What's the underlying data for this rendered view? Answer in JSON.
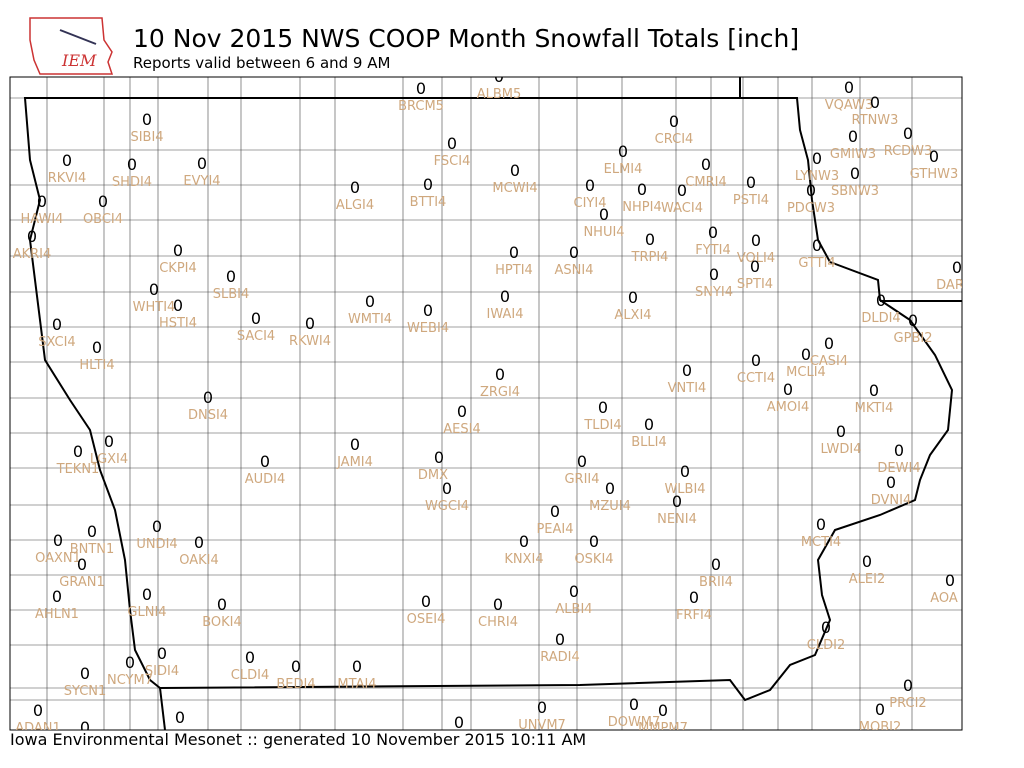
{
  "logo": "IEM",
  "header": {
    "title": "10 Nov 2015 NWS COOP Month Snowfall Totals [inch]",
    "subtitle": "Reports valid between 6 and 9 AM"
  },
  "footer": "Iowa Environmental Mesonet :: generated 10 November 2015 10:11 AM",
  "stations": [
    {
      "id": "BRCM5",
      "value": 0
    },
    {
      "id": "ALBM5",
      "value": 0
    },
    {
      "id": "SIBI4",
      "value": 0
    },
    {
      "id": "VQAW3",
      "value": 0
    },
    {
      "id": "RTNW3",
      "value": 0
    },
    {
      "id": "CRCI4",
      "value": 0
    },
    {
      "id": "GMIW3",
      "value": 0
    },
    {
      "id": "RCDW3",
      "value": 0
    },
    {
      "id": "FSCI4",
      "value": 0
    },
    {
      "id": "RKVI4",
      "value": 0
    },
    {
      "id": "SHDI4",
      "value": 0
    },
    {
      "id": "EVYI4",
      "value": 0
    },
    {
      "id": "MCWI4",
      "value": 0
    },
    {
      "id": "ELMI4",
      "value": 0
    },
    {
      "id": "CMRI4",
      "value": 0
    },
    {
      "id": "LYNW3",
      "value": 0
    },
    {
      "id": "SBNW3",
      "value": 0
    },
    {
      "id": "GTHW3",
      "value": 0
    },
    {
      "id": "ALGI4",
      "value": 0
    },
    {
      "id": "BTTI4",
      "value": 0
    },
    {
      "id": "CIYI4",
      "value": 0
    },
    {
      "id": "NHPI4",
      "value": 0
    },
    {
      "id": "WACI4",
      "value": 0
    },
    {
      "id": "PSTI4",
      "value": 0
    },
    {
      "id": "PDCW3",
      "value": 0
    },
    {
      "id": "HAWI4",
      "value": 0
    },
    {
      "id": "OBCI4",
      "value": 0
    },
    {
      "id": "NHUI4",
      "value": 0
    },
    {
      "id": "AKRI4",
      "value": 0
    },
    {
      "id": "CKPI4",
      "value": 0
    },
    {
      "id": "HPTI4",
      "value": 0
    },
    {
      "id": "ASNI4",
      "value": 0
    },
    {
      "id": "TRPI4",
      "value": 0
    },
    {
      "id": "FYTI4",
      "value": 0
    },
    {
      "id": "VOLI4",
      "value": 0
    },
    {
      "id": "GTTI4",
      "value": 0
    },
    {
      "id": "DAR",
      "value": 0
    },
    {
      "id": "SLBI4",
      "value": 0
    },
    {
      "id": "SNYI4",
      "value": 0
    },
    {
      "id": "SPTI4",
      "value": 0
    },
    {
      "id": "WHTI4",
      "value": 0
    },
    {
      "id": "HSTI4",
      "value": 0
    },
    {
      "id": "WMTI4",
      "value": 0
    },
    {
      "id": "IWAI4",
      "value": 0
    },
    {
      "id": "ALXI4",
      "value": 0
    },
    {
      "id": "DLDI4",
      "value": 0
    },
    {
      "id": "SACI4",
      "value": 0
    },
    {
      "id": "RKWI4",
      "value": 0
    },
    {
      "id": "WEBI4",
      "value": 0
    },
    {
      "id": "SXCI4",
      "value": 0
    },
    {
      "id": "GPBI2",
      "value": 0
    },
    {
      "id": "HLTI4",
      "value": 0
    },
    {
      "id": "CASI4",
      "value": 0
    },
    {
      "id": "MCLI4",
      "value": 0
    },
    {
      "id": "VNTI4",
      "value": 0
    },
    {
      "id": "CCTI4",
      "value": 0
    },
    {
      "id": "ZRGI4",
      "value": 0
    },
    {
      "id": "AMOI4",
      "value": 0
    },
    {
      "id": "MKTI4",
      "value": 0
    },
    {
      "id": "DNSI4",
      "value": 0
    },
    {
      "id": "AESI4",
      "value": 0
    },
    {
      "id": "TLDI4",
      "value": 0
    },
    {
      "id": "BLLI4",
      "value": 0
    },
    {
      "id": "LWDI4",
      "value": 0
    },
    {
      "id": "TEKN1",
      "value": 0
    },
    {
      "id": "LGXI4",
      "value": 0
    },
    {
      "id": "JAMI4",
      "value": 0
    },
    {
      "id": "DEWI4",
      "value": 0
    },
    {
      "id": "AUDI4",
      "value": 0
    },
    {
      "id": "DMX",
      "value": 0
    },
    {
      "id": "GRII4",
      "value": 0
    },
    {
      "id": "WLBI4",
      "value": 0
    },
    {
      "id": "DVNI4",
      "value": 0
    },
    {
      "id": "WGCI4",
      "value": 0
    },
    {
      "id": "MZUI4",
      "value": 0
    },
    {
      "id": "NENI4",
      "value": 0
    },
    {
      "id": "PEAI4",
      "value": 0
    },
    {
      "id": "UNDI4",
      "value": 0
    },
    {
      "id": "BNTN1",
      "value": 0
    },
    {
      "id": "MCTI4",
      "value": 0
    },
    {
      "id": "OAXN1",
      "value": 0
    },
    {
      "id": "OAKI4",
      "value": 0
    },
    {
      "id": "KNXI4",
      "value": 0
    },
    {
      "id": "OSKI4",
      "value": 0
    },
    {
      "id": "GRAN1",
      "value": 0
    },
    {
      "id": "BRII4",
      "value": 0
    },
    {
      "id": "ALEI2",
      "value": 0
    },
    {
      "id": "AOA",
      "value": 0
    },
    {
      "id": "AHLN1",
      "value": 0
    },
    {
      "id": "GLNI4",
      "value": 0
    },
    {
      "id": "ALBI4",
      "value": 0
    },
    {
      "id": "FRFI4",
      "value": 0
    },
    {
      "id": "BOKI4",
      "value": 0
    },
    {
      "id": "OSEI4",
      "value": 0
    },
    {
      "id": "CHRI4",
      "value": 0
    },
    {
      "id": "CLDI2",
      "value": 0
    },
    {
      "id": "RADI4",
      "value": 0
    },
    {
      "id": "SIDI4",
      "value": 0
    },
    {
      "id": "NCYM7",
      "value": 0
    },
    {
      "id": "CLDI4",
      "value": 0
    },
    {
      "id": "BEDI4",
      "value": 0
    },
    {
      "id": "MTAI4",
      "value": 0
    },
    {
      "id": "SYCN1",
      "value": 0
    },
    {
      "id": "PRCI2",
      "value": 0
    },
    {
      "id": "UNVM7",
      "value": 0
    },
    {
      "id": "DOWM7",
      "value": 0
    },
    {
      "id": "MMPM7",
      "value": 0
    },
    {
      "id": "MOBI2",
      "value": 0
    },
    {
      "id": "ADAN1",
      "value": 0
    },
    {
      "value": 0
    },
    {
      "value": 0
    },
    {
      "value": 0
    }
  ]
}
